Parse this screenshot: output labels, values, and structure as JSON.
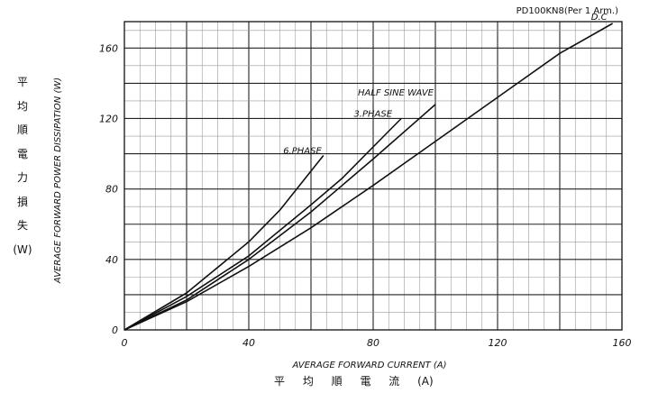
{
  "chart_data": {
    "type": "line",
    "model_label": "PD100KN8(Per 1 Arm.)",
    "xlabel": "AVERAGE FORWARD CURRENT (A)",
    "xlabel_jp": "平 均 順 電 流 (A)",
    "ylabel": "AVERAGE FORWARD POWER DISSIPATION (W)",
    "ylabel_jp_chars": [
      "平",
      "均",
      "順",
      "電",
      "力",
      "損",
      "失",
      "(W)"
    ],
    "xlim": [
      0,
      160
    ],
    "ylim": [
      0,
      175
    ],
    "x_ticks": [
      "0",
      "40",
      "80",
      "120",
      "160"
    ],
    "y_ticks": [
      "0",
      "40",
      "80",
      "120",
      "160"
    ],
    "grid": true,
    "series": [
      {
        "name": "D.C",
        "x": [
          0,
          20,
          40,
          60,
          80,
          100,
          120,
          140,
          157
        ],
        "y": [
          0,
          16,
          36,
          58,
          82,
          107,
          132,
          157,
          174
        ]
      },
      {
        "name": "HALF SINE WAVE",
        "x": [
          0,
          20,
          40,
          60,
          80,
          100
        ],
        "y": [
          0,
          17,
          40,
          67,
          97,
          128
        ]
      },
      {
        "name": "3.PHASE",
        "x": [
          0,
          20,
          40,
          60,
          70,
          89
        ],
        "y": [
          0,
          19,
          42,
          71,
          86,
          120
        ]
      },
      {
        "name": "6.PHASE",
        "x": [
          0,
          20,
          40,
          50,
          64
        ],
        "y": [
          0,
          21,
          50,
          68,
          99
        ]
      }
    ]
  }
}
